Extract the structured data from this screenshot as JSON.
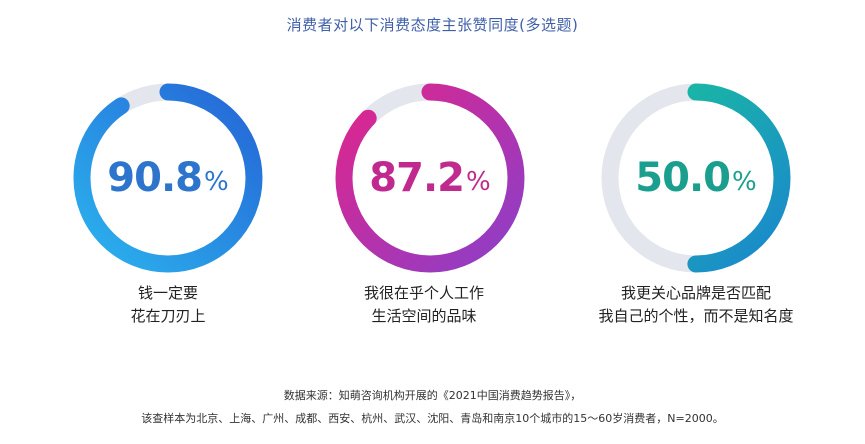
{
  "title": "消费者对以下消费态度主张赞同度(多选题)",
  "chart_data": {
    "type": "pie",
    "title": "消费者对以下消费态度主张赞同度(多选题)",
    "unit": "%",
    "items": [
      {
        "value": 90.8,
        "value_label": "90.8",
        "label_line1": "钱一定要",
        "label_line2": "花在刀刃上",
        "color_start": "#2bb3ee",
        "color_end": "#2565d6",
        "text_color": "#2d74cc"
      },
      {
        "value": 87.2,
        "value_label": "87.2",
        "label_line1": "我很在乎个人工作",
        "label_line2": "生活空间的品味",
        "color_start": "#8b3fc9",
        "color_end": "#e0258c",
        "text_color": "#c02a8f"
      },
      {
        "value": 50.0,
        "value_label": "50.0",
        "label_line1": "我更关心品牌是否匹配",
        "label_line2": "我自己的个性，而不是知名度",
        "color_start": "#1a86cf",
        "color_end": "#19c29a",
        "text_color": "#1a9f8e"
      }
    ],
    "track_color": "#e3e6ec"
  },
  "source_line1": "数据来源：知萌咨询机构开展的《2021中国消费趋势报告》，",
  "source_line2": "该查样本为北京、上海、广州、成都、西安、杭州、武汉、沈阳、青岛和南京10个城市的15～60岁消费者，N=2000。"
}
